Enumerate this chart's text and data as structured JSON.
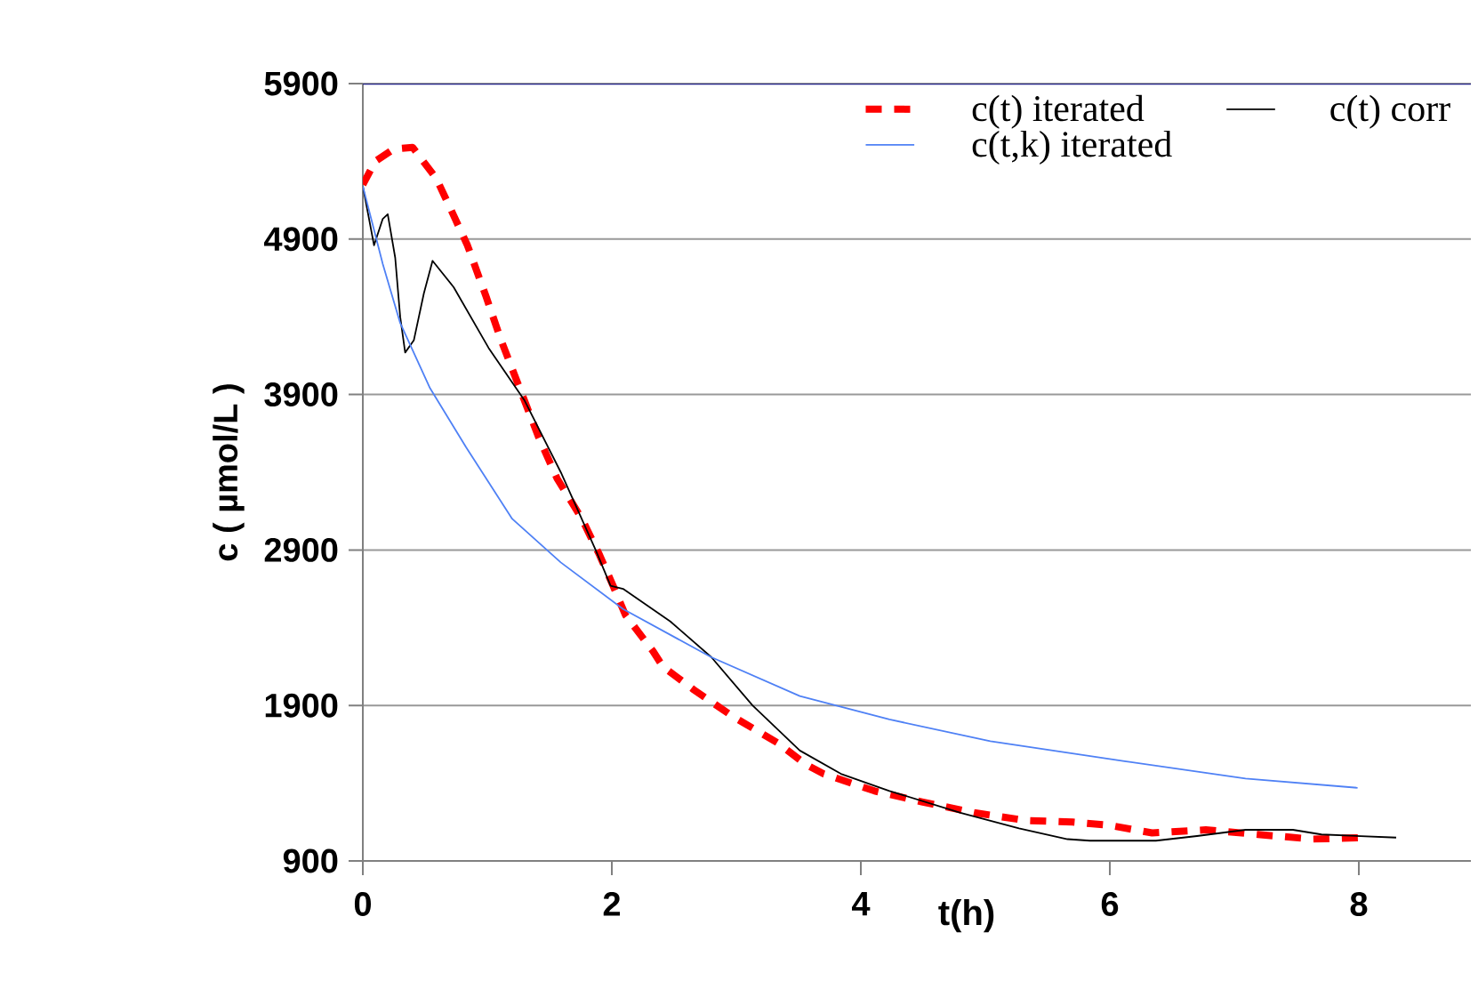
{
  "chart_data": {
    "type": "line",
    "xlabel": "t(h)",
    "ylabel": "c ( µmol/L )",
    "xlim": [
      0,
      8.9
    ],
    "ylim": [
      900,
      5900
    ],
    "xticks": [
      0,
      2,
      4,
      6,
      8
    ],
    "yticks": [
      900,
      1900,
      2900,
      3900,
      4900,
      5900
    ],
    "grid": "y",
    "legend": "top right",
    "series": [
      {
        "name": "c(t) iterated",
        "color": "#ff0000",
        "line_style": "dashed",
        "x": [
          0,
          0.1,
          0.25,
          0.4,
          0.59,
          0.69,
          0.84,
          0.99,
          1.11,
          1.26,
          1.41,
          1.56,
          1.76,
          1.9,
          2.01,
          2.11,
          2.33,
          2.41,
          2.66,
          2.97,
          3.33,
          3.56,
          3.7,
          4.11,
          4.49,
          4.91,
          5.33,
          5.7,
          5.99,
          6.34,
          6.77,
          7.19,
          7.63,
          8.04
        ],
        "values": [
          5250,
          5400,
          5480,
          5490,
          5290,
          5120,
          4860,
          4530,
          4250,
          3940,
          3630,
          3360,
          3100,
          2870,
          2670,
          2480,
          2250,
          2150,
          2000,
          1830,
          1660,
          1520,
          1460,
          1350,
          1280,
          1210,
          1160,
          1150,
          1130,
          1080,
          1100,
          1070,
          1040,
          1050
        ]
      },
      {
        "name": "c(t) corr",
        "color": "#000000",
        "line_style": "solid",
        "x": [
          0,
          0.09,
          0.16,
          0.2,
          0.26,
          0.3,
          0.34,
          0.41,
          0.49,
          0.56,
          0.73,
          1.01,
          1.3,
          1.59,
          1.87,
          1.99,
          2.09,
          2.47,
          2.8,
          3.13,
          3.51,
          3.84,
          4.23,
          4.8,
          5.27,
          5.66,
          5.84,
          6.37,
          6.7,
          7.09,
          7.47,
          7.7,
          8.3
        ],
        "values": [
          5240,
          4860,
          5030,
          5060,
          4780,
          4400,
          4170,
          4250,
          4550,
          4760,
          4590,
          4200,
          3860,
          3400,
          2900,
          2670,
          2650,
          2440,
          2210,
          1900,
          1610,
          1460,
          1350,
          1210,
          1110,
          1040,
          1030,
          1030,
          1060,
          1100,
          1100,
          1070,
          1050
        ]
      },
      {
        "name": "c(t,k) iterated",
        "color": "#4f81f5",
        "line_style": "solid",
        "x": [
          0,
          0.16,
          0.3,
          0.54,
          0.83,
          1.2,
          1.59,
          2.09,
          2.8,
          3.51,
          4.23,
          5.04,
          6.13,
          7.09,
          7.99
        ],
        "values": [
          5240,
          4740,
          4360,
          3940,
          3560,
          3100,
          2820,
          2520,
          2210,
          1960,
          1810,
          1670,
          1540,
          1430,
          1370
        ]
      }
    ]
  }
}
